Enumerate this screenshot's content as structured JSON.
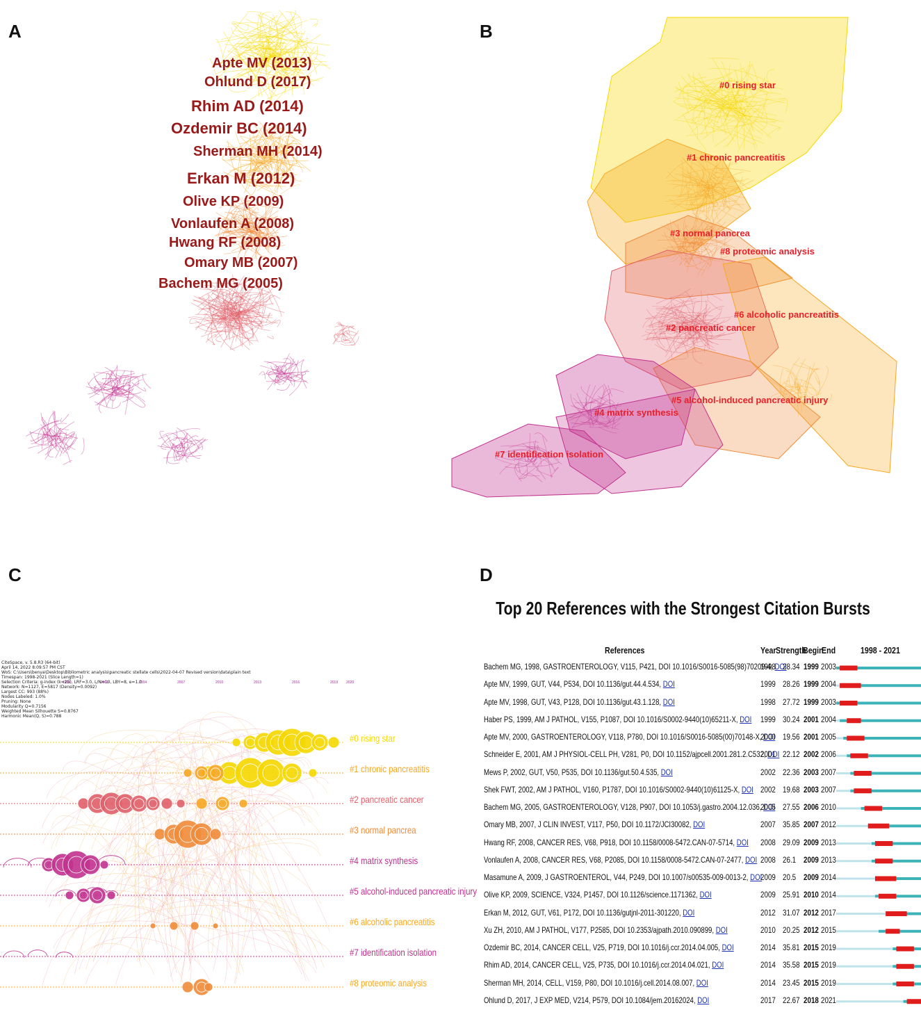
{
  "panels": {
    "a": "A",
    "b": "B",
    "c": "C",
    "d": "D"
  },
  "colors": {
    "cluster0": "#f5d800",
    "cluster1": "#f7a823",
    "cluster2": "#e0606a",
    "cluster3": "#f08c3a",
    "cluster4": "#c2338f",
    "label_red": "#9a1a1a",
    "cluster_label": "#e8202a",
    "burst_red": "#e01c1c",
    "burst_teal": "#3bb3b8",
    "burst_pale": "#bfe3ea"
  },
  "panelA": {
    "labels": [
      "Apte MV (2013)",
      "Ohlund D (2017)",
      "Rhim AD (2014)",
      "Ozdemir BC (2014)",
      "Sherman MH (2014)",
      "Erkan M (2012)",
      "Olive KP (2009)",
      "Vonlaufen A (2008)",
      "Hwang RF (2008)",
      "Omary MB (2007)",
      "Bachem MG (2005)"
    ]
  },
  "panelB": {
    "clusters": [
      "#0 rising star",
      "#1 chronic pancreatitis",
      "#3 normal pancrea",
      "#8 proteomic analysis",
      "#6 alcoholic pancreatitis",
      "#2 pancreatic cancer",
      "#5 alcohol-induced pancreatic injury",
      "#4 matrix synthesis",
      "#7 identification isolation"
    ]
  },
  "panelC": {
    "meta": "CiteSpace, v. 5.8.R3 (64-bit)\nApril 14, 2022 8:09:57 PM CST\nWoS: C:\\Users\\benya\\Desktop\\Bibliometric analysis\\pancreatic stellate cells\\2022-04-07 Revised version\\data\\plain text\nTimespan: 1998-2021 (Slice Length=1)\nSelection Criteria: g-index (k=25), LRF=3.0, L/N=10, LBY=8, e=1.0\nNetwork: N=1127, E=5817 (Density=0.0092)\nLargest CC: 993 (88%)\nNodes Labeled: 1.0%\nPruning: None\nModularity Q=0.7156\nWeighted Mean Silhouette S=0.8767\nHarmonic Mean(Q, S)=0.788",
    "years": [
      "1998",
      "2001",
      "2004",
      "2007",
      "2010",
      "2013",
      "2016",
      "2019",
      "2020"
    ],
    "clusters": [
      "#0 rising star",
      "#1 chronic pancreatitis",
      "#2 pancreatic cancer",
      "#3 normal pancrea",
      "#4 matrix synthesis",
      "#5 alcohol-induced pancreatic injury",
      "#6 alcoholic pancreatitis",
      "#7 identification isolation",
      "#8 proteomic analysis"
    ]
  },
  "panelD": {
    "title": "Top 20 References with the Strongest Citation Bursts",
    "headers": {
      "references": "References",
      "year": "Year",
      "strength": "Strength",
      "begin": "Begin",
      "end": "End",
      "range": "1998 - 2021"
    }
  },
  "chart_data": [
    {
      "type": "table",
      "title": "Top 20 References with the Strongest Citation Bursts",
      "timeline": [
        1998,
        2021
      ],
      "columns": [
        "References",
        "Year",
        "Strength",
        "Begin",
        "End"
      ],
      "rows": [
        {
          "ref": "Bachem MG, 1998, GASTROENTEROLOGY, V115, P421, DOI 10.1016/S0016-5085(98)70209-4, ",
          "doi": "DOI",
          "year": "1998",
          "strength": "28.34",
          "begin": "1999",
          "end": "2003"
        },
        {
          "ref": "Apte MV, 1999, GUT, V44, P534, DOI 10.1136/gut.44.4.534, ",
          "doi": "DOI",
          "year": "1999",
          "strength": "28.26",
          "begin": "1999",
          "end": "2004"
        },
        {
          "ref": "Apte MV, 1998, GUT, V43, P128, DOI 10.1136/gut.43.1.128, ",
          "doi": "DOI",
          "year": "1998",
          "strength": "27.72",
          "begin": "1999",
          "end": "2003"
        },
        {
          "ref": "Haber PS, 1999, AM J PATHOL, V155, P1087, DOI 10.1016/S0002-9440(10)65211-X, ",
          "doi": "DOI",
          "year": "1999",
          "strength": "30.24",
          "begin": "2001",
          "end": "2004"
        },
        {
          "ref": "Apte MV, 2000, GASTROENTEROLOGY, V118, P780, DOI 10.1016/S0016-5085(00)70148-X, ",
          "doi": "DOI",
          "year": "2000",
          "strength": "19.56",
          "begin": "2001",
          "end": "2005"
        },
        {
          "ref": "Schneider E, 2001, AM J PHYSIOL-CELL PH, V281, P0, DOI 10.1152/ajpcell.2001.281.2.C532, ",
          "doi": "DOI",
          "year": "2001",
          "strength": "22.12",
          "begin": "2002",
          "end": "2006"
        },
        {
          "ref": "Mews P, 2002, GUT, V50, P535, DOI 10.1136/gut.50.4.535, ",
          "doi": "DOI",
          "year": "2002",
          "strength": "22.36",
          "begin": "2003",
          "end": "2007"
        },
        {
          "ref": "Shek FWT, 2002, AM J PATHOL, V160, P1787, DOI 10.1016/S0002-9440(10)61125-X, ",
          "doi": "DOI",
          "year": "2002",
          "strength": "19.68",
          "begin": "2003",
          "end": "2007"
        },
        {
          "ref": "Bachem MG, 2005, GASTROENTEROLOGY, V128, P907, DOI 10.1053/j.gastro.2004.12.036, ",
          "doi": "DOI",
          "year": "2005",
          "strength": "27.55",
          "begin": "2006",
          "end": "2010"
        },
        {
          "ref": "Omary MB, 2007, J CLIN INVEST, V117, P50, DOI 10.1172/JCI30082, ",
          "doi": "DOI",
          "year": "2007",
          "strength": "35.85",
          "begin": "2007",
          "end": "2012"
        },
        {
          "ref": "Hwang RF, 2008, CANCER RES, V68, P918, DOI 10.1158/0008-5472.CAN-07-5714, ",
          "doi": "DOI",
          "year": "2008",
          "strength": "29.09",
          "begin": "2009",
          "end": "2013"
        },
        {
          "ref": "Vonlaufen A, 2008, CANCER RES, V68, P2085, DOI 10.1158/0008-5472.CAN-07-2477, ",
          "doi": "DOI",
          "year": "2008",
          "strength": "26.1",
          "begin": "2009",
          "end": "2013"
        },
        {
          "ref": "Masamune A, 2009, J GASTROENTEROL, V44, P249, DOI 10.1007/s00535-009-0013-2, ",
          "doi": "DOI",
          "year": "2009",
          "strength": "20.5",
          "begin": "2009",
          "end": "2014"
        },
        {
          "ref": "Olive KP, 2009, SCIENCE, V324, P1457, DOI 10.1126/science.1171362, ",
          "doi": "DOI",
          "year": "2009",
          "strength": "25.91",
          "begin": "2010",
          "end": "2014"
        },
        {
          "ref": "Erkan M, 2012, GUT, V61, P172, DOI 10.1136/gutjnl-2011-301220, ",
          "doi": "DOI",
          "year": "2012",
          "strength": "31.07",
          "begin": "2012",
          "end": "2017"
        },
        {
          "ref": "Xu ZH, 2010, AM J PATHOL, V177, P2585, DOI 10.2353/ajpath.2010.090899, ",
          "doi": "DOI",
          "year": "2010",
          "strength": "20.25",
          "begin": "2012",
          "end": "2015"
        },
        {
          "ref": "Ozdemir BC, 2014, CANCER CELL, V25, P719, DOI 10.1016/j.ccr.2014.04.005, ",
          "doi": "DOI",
          "year": "2014",
          "strength": "35.81",
          "begin": "2015",
          "end": "2019"
        },
        {
          "ref": "Rhim AD, 2014, CANCER CELL, V25, P735, DOI 10.1016/j.ccr.2014.04.021, ",
          "doi": "DOI",
          "year": "2014",
          "strength": "35.58",
          "begin": "2015",
          "end": "2019"
        },
        {
          "ref": "Sherman MH, 2014, CELL, V159, P80, DOI 10.1016/j.cell.2014.08.007, ",
          "doi": "DOI",
          "year": "2014",
          "strength": "23.45",
          "begin": "2015",
          "end": "2019"
        },
        {
          "ref": "Ohlund D, 2017, J EXP MED, V214, P579, DOI 10.1084/jem.20162024, ",
          "doi": "DOI",
          "year": "2017",
          "strength": "22.67",
          "begin": "2018",
          "end": "2021"
        }
      ]
    }
  ]
}
